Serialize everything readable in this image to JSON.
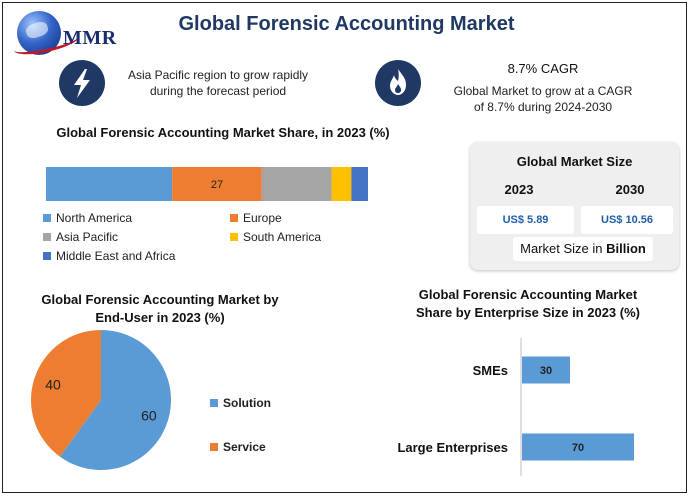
{
  "header": {
    "logo_text": "MMR",
    "title": "Global Forensic Accounting Market"
  },
  "highlights": [
    {
      "icon": "lightning-bolt-icon",
      "text_line1": "Asia Pacific region to grow rapidly",
      "text_line2": "during the forecast period"
    },
    {
      "icon": "flame-icon",
      "heading": "8.7% CAGR",
      "text_line1": "Global Market to grow at a CAGR",
      "text_line2": "of 8.7% during 2024-2030"
    }
  ],
  "colors": {
    "north_america": "#5b9bd5",
    "europe": "#ed7d31",
    "asia_pacific": "#a5a5a5",
    "south_america": "#ffc000",
    "mea": "#4472c4",
    "title_navy": "#1f3864"
  },
  "market_size": {
    "title": "Global Market Size",
    "year1": "2023",
    "year2": "2030",
    "value1": "US$ 5.89",
    "value2": "US$ 10.56",
    "unit_prefix": "Market Size in ",
    "unit_bold": "Billion"
  },
  "chart_data": [
    {
      "type": "bar",
      "orientation": "horizontal-stacked-100",
      "title": "Global Forensic Accounting Market Share, in 2023 (%)",
      "series": [
        {
          "name": "North America",
          "value": 38,
          "color": "#5b9bd5",
          "label": ""
        },
        {
          "name": "Europe",
          "value": 27,
          "color": "#ed7d31",
          "label": "27"
        },
        {
          "name": "Asia Pacific",
          "value": 21,
          "color": "#a5a5a5",
          "label": ""
        },
        {
          "name": "South America",
          "value": 6,
          "color": "#ffc000",
          "label": ""
        },
        {
          "name": "Middle East and Africa",
          "value": 5,
          "color": "#4472c4",
          "label": ""
        }
      ],
      "legend": [
        "North America",
        "Europe",
        "Asia Pacific",
        "South America",
        "Middle East and Africa"
      ]
    },
    {
      "type": "pie",
      "title_line1": "Global Forensic Accounting Market by",
      "title_line2": "End-User in 2023 (%)",
      "slices": [
        {
          "name": "Solution",
          "value": 60,
          "color": "#5b9bd5"
        },
        {
          "name": "Service",
          "value": 40,
          "color": "#ed7d31"
        }
      ]
    },
    {
      "type": "bar",
      "orientation": "horizontal",
      "title_line1": "Global Forensic Accounting Market",
      "title_line2": "Share by Enterprise Size in 2023 (%)",
      "categories": [
        "SMEs",
        "Large Enterprises"
      ],
      "values": [
        30,
        70
      ],
      "color": "#5b9bd5",
      "xlim": [
        0,
        70
      ]
    }
  ]
}
